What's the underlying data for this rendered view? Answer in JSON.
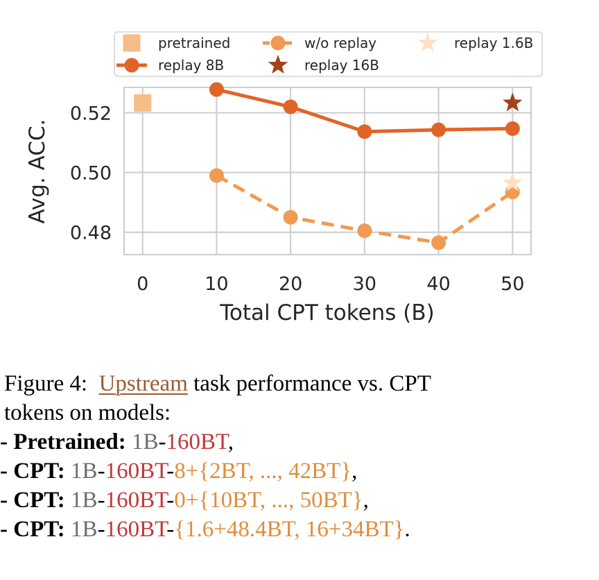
{
  "chart_data": {
    "type": "line",
    "xlabel": "Total CPT tokens (B)",
    "ylabel": "Avg. ACC.",
    "xlim": [
      -2.5,
      52.5
    ],
    "ylim": [
      0.4725,
      0.5285
    ],
    "xticks": [
      0,
      10,
      20,
      30,
      40,
      50
    ],
    "yticks": [
      0.48,
      0.5,
      0.52
    ],
    "xtick_labels": [
      "0",
      "10",
      "20",
      "30",
      "40",
      "50"
    ],
    "ytick_labels": [
      "0.48",
      "0.50",
      "0.52"
    ],
    "grid": true,
    "legend_position": "top",
    "series": [
      {
        "name": "pretrained",
        "marker": "square",
        "line": "none",
        "color": "#f5bd8a",
        "x": [
          0
        ],
        "values": [
          0.5233
        ]
      },
      {
        "name": "w/o replay",
        "marker": "circle",
        "line": "dashed",
        "color": "#f09a53",
        "x": [
          10,
          20,
          30,
          40,
          50
        ],
        "values": [
          0.499,
          0.485,
          0.4805,
          0.4765,
          0.4935
        ]
      },
      {
        "name": "replay 1.6B",
        "marker": "star",
        "line": "none",
        "color": "#fde0c5",
        "x": [
          50
        ],
        "values": [
          0.4965
        ]
      },
      {
        "name": "replay 8B",
        "marker": "circle",
        "line": "solid",
        "color": "#e06428",
        "x": [
          10,
          20,
          30,
          40,
          50
        ],
        "values": [
          0.5278,
          0.522,
          0.5137,
          0.5143,
          0.5147
        ]
      },
      {
        "name": "replay 16B",
        "marker": "star",
        "line": "none",
        "color": "#a4421a",
        "x": [
          50
        ],
        "values": [
          0.5233
        ]
      }
    ]
  },
  "caption": {
    "label": "Figure 4:",
    "link_text": "Upstream",
    "text1": "task performance vs.  CPT",
    "text2": "tokens on models:",
    "bullet": "-",
    "lines": [
      {
        "head": "Pretrained:",
        "model": "1B",
        "sep1": "-",
        "stage1": "160BT",
        "tail": ","
      },
      {
        "head": "CPT:",
        "model": "1B",
        "sep1": "-",
        "stage1": "160BT",
        "sep2": "-",
        "stage2": "8+{2BT, ..., 42BT}",
        "tail": ","
      },
      {
        "head": "CPT:",
        "model": "1B",
        "sep1": "-",
        "stage1": "160BT",
        "sep2": "-",
        "stage2": "0+{10BT, ..., 50BT}",
        "tail": ","
      },
      {
        "head": "CPT:",
        "model": "1B",
        "sep1": "-",
        "stage1": "160BT",
        "sep2": "-",
        "stage2": "{1.6+48.4BT, 16+34BT}",
        "tail": "."
      }
    ]
  }
}
